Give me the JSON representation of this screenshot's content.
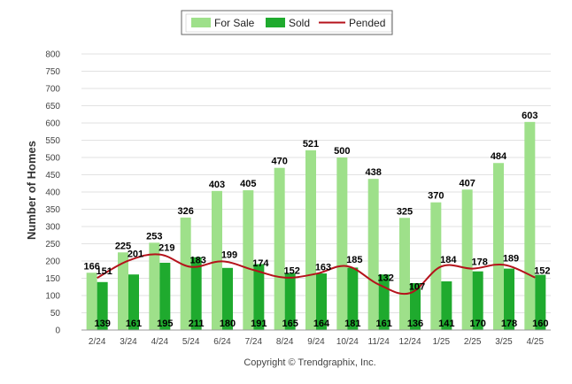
{
  "chart_data": {
    "type": "bar",
    "categories": [
      "2/24",
      "3/24",
      "4/24",
      "5/24",
      "6/24",
      "7/24",
      "8/24",
      "9/24",
      "10/24",
      "11/24",
      "12/24",
      "1/25",
      "2/25",
      "3/25",
      "4/25"
    ],
    "series": [
      {
        "name": "For Sale",
        "kind": "bar",
        "color": "#9ee08a",
        "values": [
          166,
          225,
          253,
          326,
          403,
          405,
          470,
          521,
          500,
          438,
          325,
          370,
          407,
          484,
          603
        ]
      },
      {
        "name": "Sold",
        "kind": "bar",
        "color": "#1faa2e",
        "values": [
          139,
          161,
          195,
          211,
          180,
          191,
          165,
          164,
          181,
          161,
          136,
          141,
          170,
          178,
          160
        ]
      },
      {
        "name": "Pended",
        "kind": "line",
        "color": "#b5121b",
        "values": [
          151,
          201,
          219,
          183,
          199,
          174,
          152,
          163,
          185,
          132,
          107,
          184,
          178,
          189,
          152
        ]
      }
    ],
    "title": "",
    "xlabel": "",
    "ylabel": "Number of Homes",
    "ylim": [
      0,
      800
    ],
    "yticks": [
      0,
      50,
      100,
      150,
      200,
      250,
      300,
      350,
      400,
      450,
      500,
      550,
      600,
      650,
      700,
      750,
      800
    ],
    "grid": true,
    "legend_position": "top-center"
  },
  "footer": {
    "text": "Copyright © Trendgraphix, Inc."
  }
}
